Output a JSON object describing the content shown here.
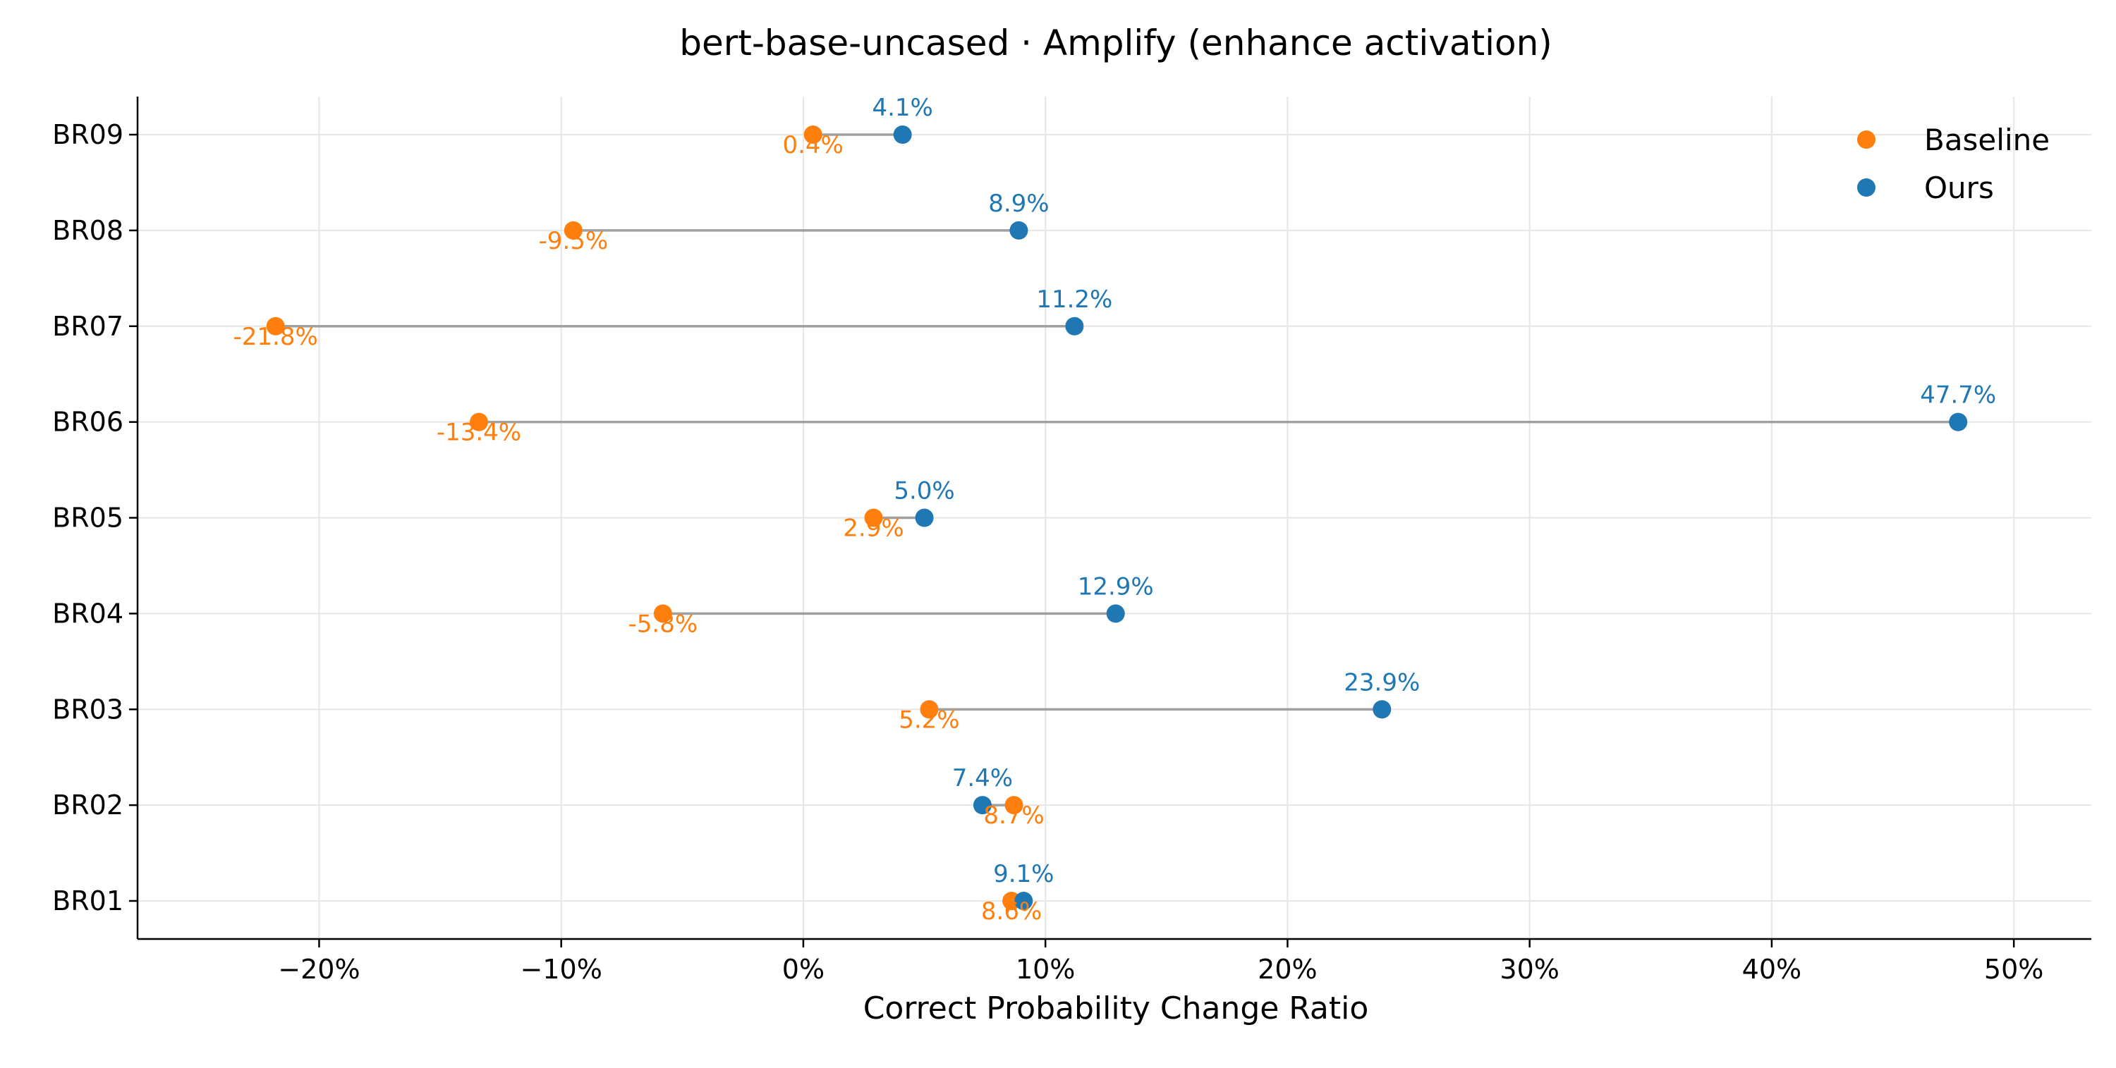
{
  "chart_data": {
    "type": "scatter",
    "title": "bert-base-uncased · Amplify (enhance activation)",
    "xlabel": "Correct Probability Change Ratio",
    "ylabel": "",
    "xlim": [
      -27.5,
      53.2
    ],
    "x_ticks": [
      -20,
      -10,
      0,
      10,
      20,
      30,
      40,
      50
    ],
    "x_tick_labels": [
      "−20%",
      "−10%",
      "0%",
      "10%",
      "20%",
      "30%",
      "40%",
      "50%"
    ],
    "categories": [
      "BR01",
      "BR02",
      "BR03",
      "BR04",
      "BR05",
      "BR06",
      "BR07",
      "BR08",
      "BR09"
    ],
    "grid": true,
    "legend_position": "top-right",
    "series": [
      {
        "name": "Baseline",
        "color": "#ff7f0e",
        "values": [
          8.6,
          8.7,
          5.2,
          -5.8,
          2.9,
          -13.4,
          -21.8,
          -9.5,
          0.4
        ],
        "labels": [
          "8.6%",
          "8.7%",
          "5.2%",
          "-5.8%",
          "2.9%",
          "-13.4%",
          "-21.8%",
          "-9.5%",
          "0.4%"
        ]
      },
      {
        "name": "Ours",
        "color": "#1f77b4",
        "values": [
          9.1,
          7.4,
          23.9,
          12.9,
          5.0,
          47.7,
          11.2,
          8.9,
          4.1
        ],
        "labels": [
          "9.1%",
          "7.4%",
          "23.9%",
          "12.9%",
          "5.0%",
          "47.7%",
          "11.2%",
          "8.9%",
          "4.1%"
        ]
      }
    ],
    "connector_color": "#a0a0a0",
    "grid_color": "#e6e6e6"
  }
}
